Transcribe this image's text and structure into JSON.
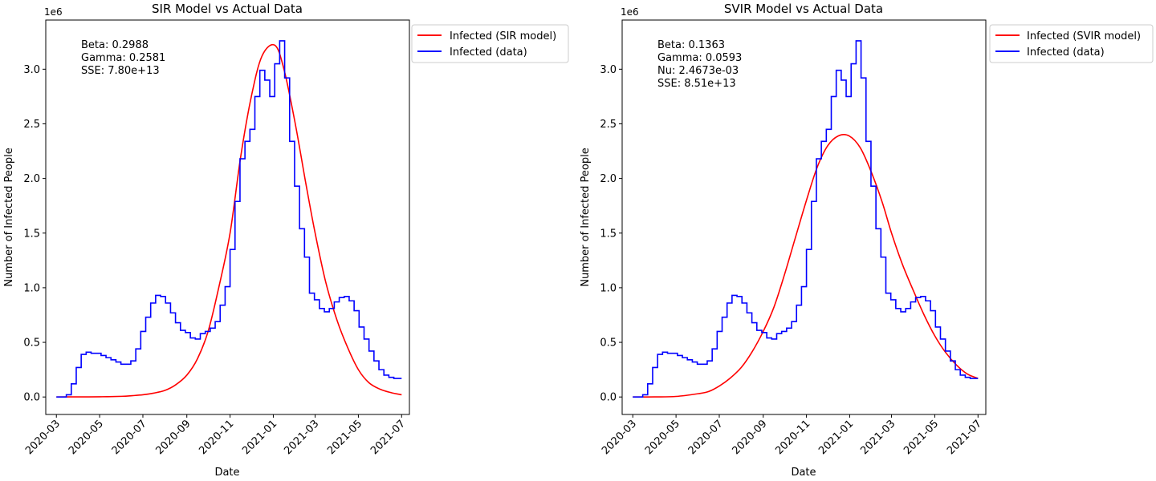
{
  "chart_data": [
    {
      "type": "line",
      "title": "SIR Model vs Actual Data",
      "xlabel": "Date",
      "ylabel": "Number of Infected People",
      "y_offset_label": "1e6",
      "xlim": [
        "2020-02-15",
        "2021-07-12"
      ],
      "ylim": [
        -0.16,
        3.45
      ],
      "y_scale_multiplier": 1000000,
      "x_ticks": [
        "2020-03-01",
        "2020-05-01",
        "2020-07-01",
        "2020-09-01",
        "2020-11-01",
        "2021-01-01",
        "2021-03-01",
        "2021-05-01",
        "2021-07-01"
      ],
      "x_tick_labels": [
        "2020-03",
        "2020-05",
        "2020-07",
        "2020-09",
        "2020-11",
        "2021-01",
        "2021-03",
        "2021-05",
        "2021-07"
      ],
      "y_ticks": [
        0.0,
        0.5,
        1.0,
        1.5,
        2.0,
        2.5,
        3.0
      ],
      "y_tick_labels": [
        "0.0",
        "0.5",
        "1.0",
        "1.5",
        "2.0",
        "2.5",
        "3.0"
      ],
      "grid": false,
      "legend_placement": "outside-top-right",
      "annotation": [
        "Beta: 0.2988",
        "Gamma: 0.2581",
        "SSE: 7.80e+13"
      ],
      "series": [
        {
          "name": "Infected (SIR model)",
          "color": "#ff0000",
          "style": "smooth",
          "points": [
            [
              "2020-03-01",
              0.0
            ],
            [
              "2020-04-01",
              0.001
            ],
            [
              "2020-05-01",
              0.002
            ],
            [
              "2020-06-01",
              0.006
            ],
            [
              "2020-06-16",
              0.012
            ],
            [
              "2020-07-01",
              0.02
            ],
            [
              "2020-07-16",
              0.035
            ],
            [
              "2020-08-01",
              0.06
            ],
            [
              "2020-08-16",
              0.11
            ],
            [
              "2020-09-01",
              0.2
            ],
            [
              "2020-09-16",
              0.35
            ],
            [
              "2020-10-01",
              0.6
            ],
            [
              "2020-10-16",
              1.0
            ],
            [
              "2020-11-01",
              1.5
            ],
            [
              "2020-11-16",
              2.2
            ],
            [
              "2020-12-01",
              2.75
            ],
            [
              "2020-12-16",
              3.12
            ],
            [
              "2021-01-03",
              3.22
            ],
            [
              "2021-01-16",
              3.0
            ],
            [
              "2021-02-01",
              2.5
            ],
            [
              "2021-02-16",
              1.95
            ],
            [
              "2021-03-01",
              1.5
            ],
            [
              "2021-03-16",
              1.05
            ],
            [
              "2021-04-01",
              0.7
            ],
            [
              "2021-04-16",
              0.45
            ],
            [
              "2021-05-01",
              0.25
            ],
            [
              "2021-05-16",
              0.13
            ],
            [
              "2021-06-01",
              0.07
            ],
            [
              "2021-06-16",
              0.04
            ],
            [
              "2021-07-01",
              0.02
            ]
          ]
        },
        {
          "name": "Infected (data)",
          "color": "#0000ff",
          "style": "step",
          "points": [
            [
              "2020-03-01",
              0.0
            ],
            [
              "2020-03-08",
              0.0
            ],
            [
              "2020-03-15",
              0.02
            ],
            [
              "2020-03-22",
              0.12
            ],
            [
              "2020-03-29",
              0.27
            ],
            [
              "2020-04-05",
              0.39
            ],
            [
              "2020-04-12",
              0.41
            ],
            [
              "2020-04-19",
              0.4
            ],
            [
              "2020-04-26",
              0.4
            ],
            [
              "2020-05-03",
              0.38
            ],
            [
              "2020-05-10",
              0.36
            ],
            [
              "2020-05-17",
              0.34
            ],
            [
              "2020-05-24",
              0.32
            ],
            [
              "2020-05-31",
              0.3
            ],
            [
              "2020-06-07",
              0.3
            ],
            [
              "2020-06-14",
              0.33
            ],
            [
              "2020-06-21",
              0.44
            ],
            [
              "2020-06-28",
              0.6
            ],
            [
              "2020-07-05",
              0.73
            ],
            [
              "2020-07-12",
              0.86
            ],
            [
              "2020-07-19",
              0.93
            ],
            [
              "2020-07-26",
              0.92
            ],
            [
              "2020-08-02",
              0.86
            ],
            [
              "2020-08-09",
              0.77
            ],
            [
              "2020-08-16",
              0.68
            ],
            [
              "2020-08-23",
              0.61
            ],
            [
              "2020-08-30",
              0.59
            ],
            [
              "2020-09-06",
              0.54
            ],
            [
              "2020-09-13",
              0.53
            ],
            [
              "2020-09-20",
              0.58
            ],
            [
              "2020-09-27",
              0.6
            ],
            [
              "2020-10-04",
              0.63
            ],
            [
              "2020-10-11",
              0.69
            ],
            [
              "2020-10-18",
              0.84
            ],
            [
              "2020-10-25",
              1.01
            ],
            [
              "2020-11-01",
              1.35
            ],
            [
              "2020-11-08",
              1.79
            ],
            [
              "2020-11-15",
              2.18
            ],
            [
              "2020-11-22",
              2.34
            ],
            [
              "2020-11-29",
              2.45
            ],
            [
              "2020-12-06",
              2.75
            ],
            [
              "2020-12-13",
              2.99
            ],
            [
              "2020-12-20",
              2.9
            ],
            [
              "2020-12-27",
              2.75
            ],
            [
              "2021-01-03",
              3.05
            ],
            [
              "2021-01-10",
              3.26
            ],
            [
              "2021-01-17",
              2.92
            ],
            [
              "2021-01-24",
              2.34
            ],
            [
              "2021-01-31",
              1.93
            ],
            [
              "2021-02-07",
              1.54
            ],
            [
              "2021-02-14",
              1.28
            ],
            [
              "2021-02-21",
              0.95
            ],
            [
              "2021-02-28",
              0.89
            ],
            [
              "2021-03-07",
              0.81
            ],
            [
              "2021-03-14",
              0.78
            ],
            [
              "2021-03-21",
              0.81
            ],
            [
              "2021-03-28",
              0.87
            ],
            [
              "2021-04-04",
              0.91
            ],
            [
              "2021-04-11",
              0.92
            ],
            [
              "2021-04-18",
              0.88
            ],
            [
              "2021-04-25",
              0.79
            ],
            [
              "2021-05-02",
              0.64
            ],
            [
              "2021-05-09",
              0.53
            ],
            [
              "2021-05-16",
              0.42
            ],
            [
              "2021-05-23",
              0.33
            ],
            [
              "2021-05-30",
              0.25
            ],
            [
              "2021-06-06",
              0.2
            ],
            [
              "2021-06-13",
              0.18
            ],
            [
              "2021-06-20",
              0.17
            ],
            [
              "2021-06-27",
              0.17
            ]
          ]
        }
      ]
    },
    {
      "type": "line",
      "title": "SVIR Model vs Actual Data",
      "xlabel": "Date",
      "ylabel": "Number of Infected People",
      "y_offset_label": "1e6",
      "xlim": [
        "2020-02-15",
        "2021-07-12"
      ],
      "ylim": [
        -0.16,
        3.45
      ],
      "y_scale_multiplier": 1000000,
      "x_ticks": [
        "2020-03-01",
        "2020-05-01",
        "2020-07-01",
        "2020-09-01",
        "2020-11-01",
        "2021-01-01",
        "2021-03-01",
        "2021-05-01",
        "2021-07-01"
      ],
      "x_tick_labels": [
        "2020-03",
        "2020-05",
        "2020-07",
        "2020-09",
        "2020-11",
        "2021-01",
        "2021-03",
        "2021-05",
        "2021-07"
      ],
      "y_ticks": [
        0.0,
        0.5,
        1.0,
        1.5,
        2.0,
        2.5,
        3.0
      ],
      "y_tick_labels": [
        "0.0",
        "0.5",
        "1.0",
        "1.5",
        "2.0",
        "2.5",
        "3.0"
      ],
      "grid": false,
      "legend_placement": "outside-top-right",
      "annotation": [
        "Beta: 0.1363",
        "Gamma: 0.0593",
        "Nu: 2.4673e-03",
        "SSE: 8.51e+13"
      ],
      "series": [
        {
          "name": "Infected (SVIR model)",
          "color": "#ff0000",
          "style": "smooth",
          "points": [
            [
              "2020-03-01",
              0.0
            ],
            [
              "2020-04-01",
              0.001
            ],
            [
              "2020-05-01",
              0.005
            ],
            [
              "2020-06-01",
              0.03
            ],
            [
              "2020-06-16",
              0.05
            ],
            [
              "2020-07-01",
              0.1
            ],
            [
              "2020-07-16",
              0.17
            ],
            [
              "2020-08-01",
              0.27
            ],
            [
              "2020-08-16",
              0.41
            ],
            [
              "2020-09-01",
              0.6
            ],
            [
              "2020-09-16",
              0.82
            ],
            [
              "2020-10-01",
              1.12
            ],
            [
              "2020-10-16",
              1.45
            ],
            [
              "2020-11-01",
              1.8
            ],
            [
              "2020-11-16",
              2.1
            ],
            [
              "2020-12-01",
              2.3
            ],
            [
              "2020-12-16",
              2.39
            ],
            [
              "2020-12-31",
              2.39
            ],
            [
              "2021-01-16",
              2.28
            ],
            [
              "2021-02-01",
              2.05
            ],
            [
              "2021-02-16",
              1.78
            ],
            [
              "2021-03-01",
              1.5
            ],
            [
              "2021-03-16",
              1.22
            ],
            [
              "2021-04-01",
              0.97
            ],
            [
              "2021-04-16",
              0.75
            ],
            [
              "2021-05-01",
              0.56
            ],
            [
              "2021-05-16",
              0.41
            ],
            [
              "2021-06-01",
              0.29
            ],
            [
              "2021-06-16",
              0.21
            ],
            [
              "2021-07-01",
              0.17
            ]
          ]
        },
        {
          "name": "Infected (data)",
          "color": "#0000ff",
          "style": "step",
          "points": [
            [
              "2020-03-01",
              0.0
            ],
            [
              "2020-03-08",
              0.0
            ],
            [
              "2020-03-15",
              0.02
            ],
            [
              "2020-03-22",
              0.12
            ],
            [
              "2020-03-29",
              0.27
            ],
            [
              "2020-04-05",
              0.39
            ],
            [
              "2020-04-12",
              0.41
            ],
            [
              "2020-04-19",
              0.4
            ],
            [
              "2020-04-26",
              0.4
            ],
            [
              "2020-05-03",
              0.38
            ],
            [
              "2020-05-10",
              0.36
            ],
            [
              "2020-05-17",
              0.34
            ],
            [
              "2020-05-24",
              0.32
            ],
            [
              "2020-05-31",
              0.3
            ],
            [
              "2020-06-07",
              0.3
            ],
            [
              "2020-06-14",
              0.33
            ],
            [
              "2020-06-21",
              0.44
            ],
            [
              "2020-06-28",
              0.6
            ],
            [
              "2020-07-05",
              0.73
            ],
            [
              "2020-07-12",
              0.86
            ],
            [
              "2020-07-19",
              0.93
            ],
            [
              "2020-07-26",
              0.92
            ],
            [
              "2020-08-02",
              0.86
            ],
            [
              "2020-08-09",
              0.77
            ],
            [
              "2020-08-16",
              0.68
            ],
            [
              "2020-08-23",
              0.61
            ],
            [
              "2020-08-30",
              0.59
            ],
            [
              "2020-09-06",
              0.54
            ],
            [
              "2020-09-13",
              0.53
            ],
            [
              "2020-09-20",
              0.58
            ],
            [
              "2020-09-27",
              0.6
            ],
            [
              "2020-10-04",
              0.63
            ],
            [
              "2020-10-11",
              0.69
            ],
            [
              "2020-10-18",
              0.84
            ],
            [
              "2020-10-25",
              1.01
            ],
            [
              "2020-11-01",
              1.35
            ],
            [
              "2020-11-08",
              1.79
            ],
            [
              "2020-11-15",
              2.18
            ],
            [
              "2020-11-22",
              2.34
            ],
            [
              "2020-11-29",
              2.45
            ],
            [
              "2020-12-06",
              2.75
            ],
            [
              "2020-12-13",
              2.99
            ],
            [
              "2020-12-20",
              2.9
            ],
            [
              "2020-12-27",
              2.75
            ],
            [
              "2021-01-03",
              3.05
            ],
            [
              "2021-01-10",
              3.26
            ],
            [
              "2021-01-17",
              2.92
            ],
            [
              "2021-01-24",
              2.34
            ],
            [
              "2021-01-31",
              1.93
            ],
            [
              "2021-02-07",
              1.54
            ],
            [
              "2021-02-14",
              1.28
            ],
            [
              "2021-02-21",
              0.95
            ],
            [
              "2021-02-28",
              0.89
            ],
            [
              "2021-03-07",
              0.81
            ],
            [
              "2021-03-14",
              0.78
            ],
            [
              "2021-03-21",
              0.81
            ],
            [
              "2021-03-28",
              0.87
            ],
            [
              "2021-04-04",
              0.91
            ],
            [
              "2021-04-11",
              0.92
            ],
            [
              "2021-04-18",
              0.88
            ],
            [
              "2021-04-25",
              0.79
            ],
            [
              "2021-05-02",
              0.64
            ],
            [
              "2021-05-09",
              0.53
            ],
            [
              "2021-05-16",
              0.42
            ],
            [
              "2021-05-23",
              0.33
            ],
            [
              "2021-05-30",
              0.25
            ],
            [
              "2021-06-06",
              0.2
            ],
            [
              "2021-06-13",
              0.18
            ],
            [
              "2021-06-20",
              0.17
            ],
            [
              "2021-06-27",
              0.17
            ]
          ]
        }
      ]
    }
  ]
}
